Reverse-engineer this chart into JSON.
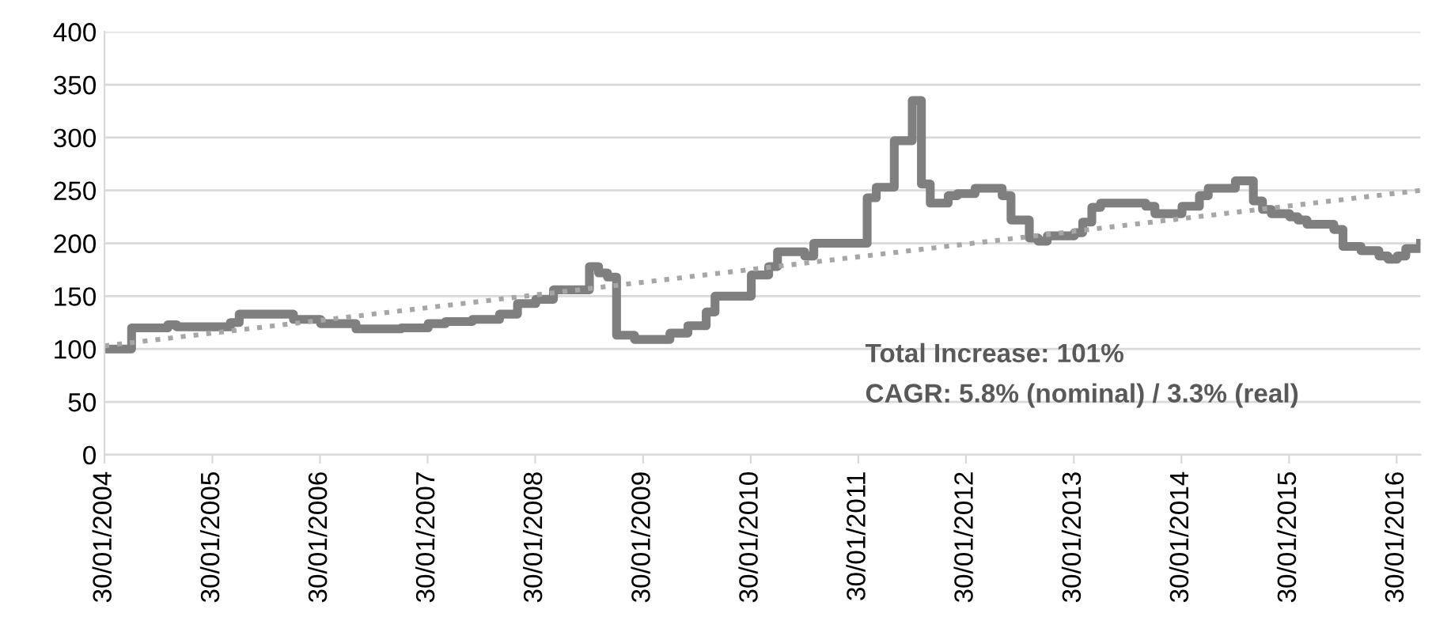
{
  "chart_data": {
    "type": "step",
    "ylim": [
      0,
      400
    ],
    "yticks": [
      0,
      50,
      100,
      150,
      200,
      250,
      300,
      350,
      400
    ],
    "xlim": [
      "2004-01-30",
      "2016-04-20"
    ],
    "xticks": [
      {
        "value": "2004-01-30",
        "label": "30/01/2004"
      },
      {
        "value": "2005-01-30",
        "label": "30/01/2005"
      },
      {
        "value": "2006-01-30",
        "label": "30/01/2006"
      },
      {
        "value": "2007-01-30",
        "label": "30/01/2007"
      },
      {
        "value": "2008-01-30",
        "label": "30/01/2008"
      },
      {
        "value": "2009-01-30",
        "label": "30/01/2009"
      },
      {
        "value": "2010-01-30",
        "label": "30/01/2010"
      },
      {
        "value": "2011-01-30",
        "label": "30/01/2011"
      },
      {
        "value": "2012-01-30",
        "label": "30/01/2012"
      },
      {
        "value": "2013-01-30",
        "label": "30/01/2013"
      },
      {
        "value": "2014-01-30",
        "label": "30/01/2014"
      },
      {
        "value": "2015-01-30",
        "label": "30/01/2015"
      },
      {
        "value": "2016-01-30",
        "label": "30/01/2016"
      }
    ],
    "grid": "y",
    "legend": false,
    "marker": "none",
    "series": [
      {
        "color": "#7f7f7f",
        "line_style": "solid",
        "x": [
          "2004-01-30",
          "2004-05",
          "2004-09",
          "2004-10",
          "2005-04",
          "2005-05",
          "2005-11",
          "2006-02",
          "2006-06",
          "2006-11",
          "2007-02",
          "2007-04",
          "2007-07",
          "2007-10",
          "2007-12",
          "2008-02",
          "2008-04",
          "2008-08",
          "2008-09",
          "2008-10",
          "2008-11",
          "2009-01",
          "2009-05",
          "2009-07",
          "2009-09",
          "2009-10",
          "2010-02",
          "2010-04",
          "2010-05",
          "2010-08",
          "2010-09",
          "2011-03",
          "2011-04",
          "2011-06",
          "2011-08",
          "2011-09",
          "2011-10",
          "2011-12",
          "2012-01",
          "2012-03",
          "2012-06",
          "2012-07",
          "2012-09",
          "2012-10",
          "2012-11",
          "2013-02",
          "2013-03",
          "2013-04",
          "2013-05",
          "2013-10",
          "2013-11",
          "2014-02",
          "2014-04",
          "2014-05",
          "2014-08",
          "2014-10",
          "2014-11",
          "2014-12",
          "2015-02",
          "2015-03",
          "2015-04",
          "2015-07",
          "2015-08",
          "2015-10",
          "2015-12",
          "2016-01",
          "2016-02",
          "2016-03",
          "2016-04-20"
        ],
        "values": [
          100,
          120,
          123,
          121,
          125,
          133,
          128,
          124,
          119,
          120,
          124,
          126,
          128,
          133,
          143,
          147,
          156,
          178,
          172,
          168,
          113,
          109,
          115,
          122,
          135,
          150,
          170,
          178,
          192,
          188,
          200,
          243,
          253,
          297,
          335,
          256,
          238,
          245,
          247,
          252,
          245,
          222,
          205,
          202,
          207,
          210,
          220,
          234,
          238,
          235,
          228,
          235,
          245,
          252,
          259,
          240,
          232,
          228,
          225,
          222,
          218,
          213,
          197,
          193,
          188,
          185,
          188,
          195,
          200
        ]
      },
      {
        "type": "line",
        "color": "#a6a6a6",
        "line_style": "dotted",
        "x": [
          "2004-01-30",
          "2016-04-20"
        ],
        "values": [
          103,
          250
        ]
      }
    ],
    "annotations": [
      "Total Increase: 101%",
      "CAGR: 5.8% (nominal) / 3.3% (real)"
    ]
  }
}
